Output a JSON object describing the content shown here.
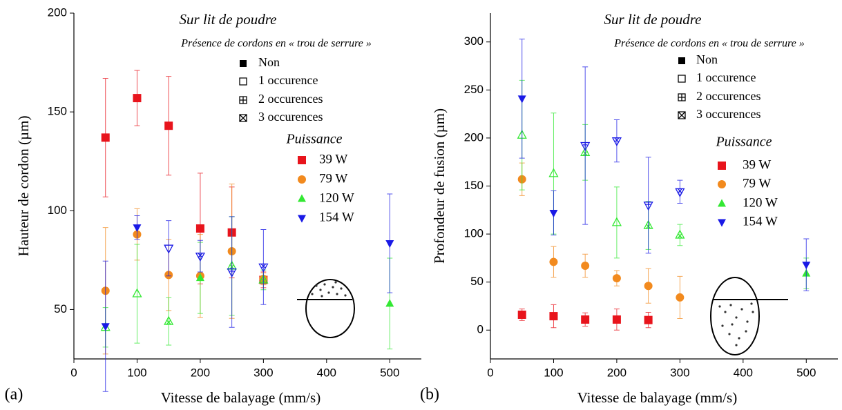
{
  "chart_data": [
    {
      "type": "scatter",
      "panel_label": "(a)",
      "title": "Sur lit de poudre",
      "subtitle": "Présence de cordons en « trou de serrure »",
      "marker_legend": [
        "Non",
        "1 occurence",
        "2 occurences",
        "3 occurences"
      ],
      "legend_title": "Puissance",
      "xlabel": "Vitesse de balayage (mm/s)",
      "ylabel": "Hauteur de cordon (µm)",
      "xlim": [
        0,
        550
      ],
      "ylim": [
        25,
        200
      ],
      "xticks": [
        0,
        100,
        200,
        300,
        400,
        500
      ],
      "yticks": [
        50,
        100,
        150,
        200
      ],
      "series": [
        {
          "name": "39 W",
          "color": "#e8141c",
          "marker": "square",
          "x": [
            50,
            100,
            150,
            200,
            250,
            300
          ],
          "values": [
            137,
            157,
            143,
            91,
            89,
            65
          ],
          "errors": [
            30,
            14,
            25,
            28,
            23,
            4
          ],
          "occurrences": [
            0,
            0,
            0,
            0,
            0,
            0
          ]
        },
        {
          "name": "79 W",
          "color": "#f28a1e",
          "marker": "circle",
          "x": [
            50,
            100,
            150,
            200,
            250,
            300
          ],
          "values": [
            59.5,
            88,
            67.5,
            67,
            79.5,
            65.5
          ],
          "errors": [
            32,
            13,
            18,
            21,
            34,
            3
          ],
          "occurrences": [
            0,
            0,
            0,
            0,
            0,
            0
          ]
        },
        {
          "name": "120 W",
          "color": "#33e833",
          "marker": "triangle-up",
          "x": [
            50,
            100,
            150,
            200,
            250,
            300,
            500
          ],
          "values": [
            41,
            58,
            44,
            66,
            72,
            65,
            53
          ],
          "errors": [
            10,
            25,
            12,
            18,
            25,
            5,
            23
          ],
          "occurrences": [
            1,
            1,
            3,
            0,
            3,
            3,
            0
          ]
        },
        {
          "name": "154 W",
          "color": "#1a1ae6",
          "marker": "triangle-down",
          "x": [
            50,
            100,
            150,
            200,
            250,
            300,
            500
          ],
          "values": [
            41.5,
            91.5,
            81,
            77,
            69,
            71.5,
            83.5
          ],
          "errors": [
            33,
            6,
            14,
            8,
            28,
            19,
            25
          ],
          "occurrences": [
            0,
            0,
            1,
            3,
            2,
            3,
            0
          ]
        }
      ]
    },
    {
      "type": "scatter",
      "panel_label": "(b)",
      "title": "Sur lit de poudre",
      "subtitle": "Présence de cordons en « trou de serrure »",
      "marker_legend": [
        "Non",
        "1 occurence",
        "2 occurences",
        "3 occurences"
      ],
      "legend_title": "Puissance",
      "xlabel": "Vitesse de balayage (mm/s)",
      "ylabel": "Profondeur de fusion (µm)",
      "xlim": [
        0,
        550
      ],
      "ylim": [
        -30,
        330
      ],
      "xticks": [
        0,
        100,
        200,
        300,
        400,
        500
      ],
      "yticks": [
        0,
        50,
        100,
        150,
        200,
        250,
        300
      ],
      "series": [
        {
          "name": "39 W",
          "color": "#e8141c",
          "marker": "square",
          "x": [
            50,
            100,
            150,
            200,
            250
          ],
          "values": [
            16,
            14.5,
            11,
            11,
            10.5
          ],
          "errors": [
            6,
            12,
            7,
            11,
            8
          ],
          "occurrences": [
            0,
            0,
            0,
            0,
            0
          ]
        },
        {
          "name": "79 W",
          "color": "#f28a1e",
          "marker": "circle",
          "x": [
            50,
            100,
            150,
            200,
            250,
            300
          ],
          "values": [
            157,
            71,
            67,
            54,
            46,
            34
          ],
          "errors": [
            17,
            16,
            12,
            8,
            18,
            22
          ],
          "occurrences": [
            0,
            0,
            0,
            0,
            0,
            0
          ]
        },
        {
          "name": "120 W",
          "color": "#33e833",
          "marker": "triangle-up",
          "x": [
            50,
            100,
            150,
            200,
            250,
            300,
            500
          ],
          "values": [
            203,
            163,
            185,
            112,
            109,
            99,
            59
          ],
          "errors": [
            57,
            63,
            29,
            37,
            25,
            11,
            16
          ],
          "occurrences": [
            1,
            1,
            3,
            1,
            3,
            3,
            0
          ]
        },
        {
          "name": "154 W",
          "color": "#1a1ae6",
          "marker": "triangle-down",
          "x": [
            50,
            100,
            150,
            200,
            250,
            300,
            500
          ],
          "values": [
            241,
            122,
            192,
            197,
            130,
            144,
            68
          ],
          "errors": [
            62,
            23,
            82,
            22,
            50,
            12,
            27
          ],
          "occurrences": [
            0,
            0,
            2,
            3,
            2,
            3,
            0
          ]
        }
      ]
    }
  ]
}
